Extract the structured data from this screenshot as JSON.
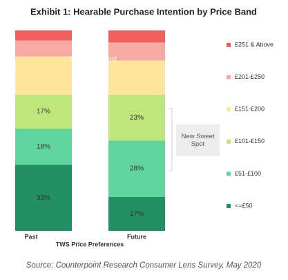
{
  "chart_data": {
    "type": "bar",
    "stacked": true,
    "title": "Exhibit 1: Hearable Purchase Intention by Price Band",
    "x_label": "TWS Price Preferences",
    "categories": [
      "Past",
      "Future"
    ],
    "series": [
      {
        "name": "<=£50",
        "color": "#238f65",
        "values": [
          33,
          17
        ],
        "value_labels": [
          "33%",
          "17%"
        ]
      },
      {
        "name": "£51-£100",
        "color": "#5fd59d",
        "values": [
          18,
          28
        ],
        "value_labels": [
          "18%",
          "28%"
        ]
      },
      {
        "name": "£101-£150",
        "color": "#bde67c",
        "values": [
          17,
          23
        ],
        "value_labels": [
          "17%",
          "23%"
        ]
      },
      {
        "name": "£151-£200",
        "color": "#fde59b",
        "values": [
          19,
          17
        ],
        "value_labels": [
          null,
          null
        ]
      },
      {
        "name": "£201-£250",
        "color": "#f6aaa1",
        "values": [
          8,
          9
        ],
        "value_labels": [
          null,
          null
        ]
      },
      {
        "name": "£251 & Above",
        "color": "#f25f5f",
        "values": [
          5,
          6
        ],
        "value_labels": [
          null,
          null
        ]
      }
    ],
    "ylim": [
      0,
      100
    ],
    "annotation": "New Sweet Spot",
    "watermark": "Counterpoint",
    "source": "Source: Counterpoint Research Consumer Lens Survey, May 2020"
  }
}
